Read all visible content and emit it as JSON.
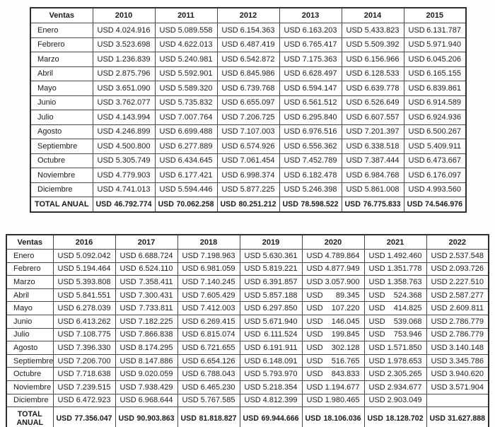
{
  "currency": "USD",
  "tables": [
    {
      "header": [
        "Ventas",
        "2010",
        "2011",
        "2012",
        "2013",
        "2014",
        "2015"
      ],
      "rows": [
        {
          "label": "Enero",
          "values": [
            "4.024.916",
            "5.089.558",
            "6.154.363",
            "6.163.203",
            "5.433.823",
            "6.131.787"
          ]
        },
        {
          "label": "Febrero",
          "values": [
            "3.523.698",
            "4.622.013",
            "6.487.419",
            "6.765.417",
            "5.509.392",
            "5.971.940"
          ]
        },
        {
          "label": "Marzo",
          "values": [
            "1.236.839",
            "5.240.981",
            "6.542.872",
            "7.175.363",
            "6.156.966",
            "6.045.206"
          ]
        },
        {
          "label": "Abril",
          "values": [
            "2.875.796",
            "5.592.901",
            "6.845.986",
            "6.628.497",
            "6.128.533",
            "6.165.155"
          ]
        },
        {
          "label": "Mayo",
          "values": [
            "3.651.090",
            "5.589.320",
            "6.739.768",
            "6.594.147",
            "6.639.778",
            "6.839.861"
          ]
        },
        {
          "label": "Junio",
          "values": [
            "3.762.077",
            "5.735.832",
            "6.655.097",
            "6.561.512",
            "6.526.649",
            "6.914.589"
          ]
        },
        {
          "label": "Julio",
          "values": [
            "4.143.994",
            "7.007.764",
            "7.206.725",
            "6.295.840",
            "6.607.557",
            "6.924.936"
          ]
        },
        {
          "label": "Agosto",
          "values": [
            "4.246.899",
            "6.699.488",
            "7.107.003",
            "6.976.516",
            "7.201.397",
            "6.500.267"
          ]
        },
        {
          "label": "Septiembre",
          "values": [
            "4.500.800",
            "6.277.889",
            "6.574.926",
            "6.556.362",
            "6.338.518",
            "5.409.911"
          ]
        },
        {
          "label": "Octubre",
          "values": [
            "5.305.749",
            "6.434.645",
            "7.061.454",
            "7.452.789",
            "7.387.444",
            "6.473.667"
          ]
        },
        {
          "label": "Noviembre",
          "values": [
            "4.779.903",
            "6.177.421",
            "6.998.374",
            "6.182.478",
            "6.984.768",
            "6.176.097"
          ]
        },
        {
          "label": "Diciembre",
          "values": [
            "4.741.013",
            "5.594.446",
            "5.877.225",
            "5.246.398",
            "5.861.008",
            "4.993.560"
          ]
        }
      ],
      "total_label": "TOTAL ANUAL",
      "totals": [
        "46.792.774",
        "70.062.258",
        "80.251.212",
        "78.598.522",
        "76.775.833",
        "74.546.976"
      ]
    },
    {
      "header": [
        "Ventas",
        "2016",
        "2017",
        "2018",
        "2019",
        "2020",
        "2021",
        "2022"
      ],
      "rows": [
        {
          "label": "Enero",
          "values": [
            "5.092.042",
            "6.688.724",
            "7.198.963",
            "5.630.361",
            "4.789.864",
            "1.492.460",
            "2.537.548"
          ]
        },
        {
          "label": "Febrero",
          "values": [
            "5.194.464",
            "6.524.110",
            "6.981.059",
            "5.819.221",
            "4.877.949",
            "1.351.778",
            "2.093.726"
          ]
        },
        {
          "label": "Marzo",
          "values": [
            "5.393.808",
            "7.358.411",
            "7.140.245",
            "6.391.857",
            "3.057.900",
            "1.358.763",
            "2.227.510"
          ]
        },
        {
          "label": "Abril",
          "values": [
            "5.841.551",
            "7.300.431",
            "7.605.429",
            "5.857.188",
            "89.345",
            "524.368",
            "2.587.277"
          ]
        },
        {
          "label": "Mayo",
          "values": [
            "6.278.039",
            "7.733.811",
            "7.412.003",
            "6.297.850",
            "107.220",
            "414.825",
            "2.609.811"
          ]
        },
        {
          "label": "Junio",
          "values": [
            "6.413.262",
            "7.182.225",
            "6.269.415",
            "5.671.940",
            "146.045",
            "539.068",
            "2.786.779"
          ]
        },
        {
          "label": "Julio",
          "values": [
            "7.108.775",
            "7.866.838",
            "6.815.074",
            "6.111.524",
            "199.845",
            "753.946",
            "2.786.779"
          ]
        },
        {
          "label": "Agosto",
          "values": [
            "7.396.330",
            "8.174.295",
            "6.721.655",
            "6.191.911",
            "302.128",
            "1.571.850",
            "3.140.148"
          ]
        },
        {
          "label": "Septiembre",
          "values": [
            "7.206.700",
            "8.147.886",
            "6.654.126",
            "6.148.091",
            "516.765",
            "1.978.653",
            "3.345.786"
          ]
        },
        {
          "label": "Octubre",
          "values": [
            "7.718.638",
            "9.020.059",
            "6.788.043",
            "5.793.970",
            "843.833",
            "2.305.265",
            "3.940.620"
          ]
        },
        {
          "label": "Noviembre",
          "values": [
            "7.239.515",
            "7.938.429",
            "6.465.230",
            "5.218.354",
            "1.194.677",
            "2.934.677",
            "3.571.904"
          ]
        },
        {
          "label": "Diciembre",
          "values": [
            "6.472.923",
            "6.968.644",
            "5.767.585",
            "4.812.399",
            "1.980.465",
            "2.903.049",
            ""
          ]
        }
      ],
      "total_label": "TOTAL ANUAL",
      "totals": [
        "77.356.047",
        "90.903.863",
        "81.818.827",
        "69.944.666",
        "18.106.036",
        "18.128.702",
        "31.627.888"
      ]
    }
  ]
}
